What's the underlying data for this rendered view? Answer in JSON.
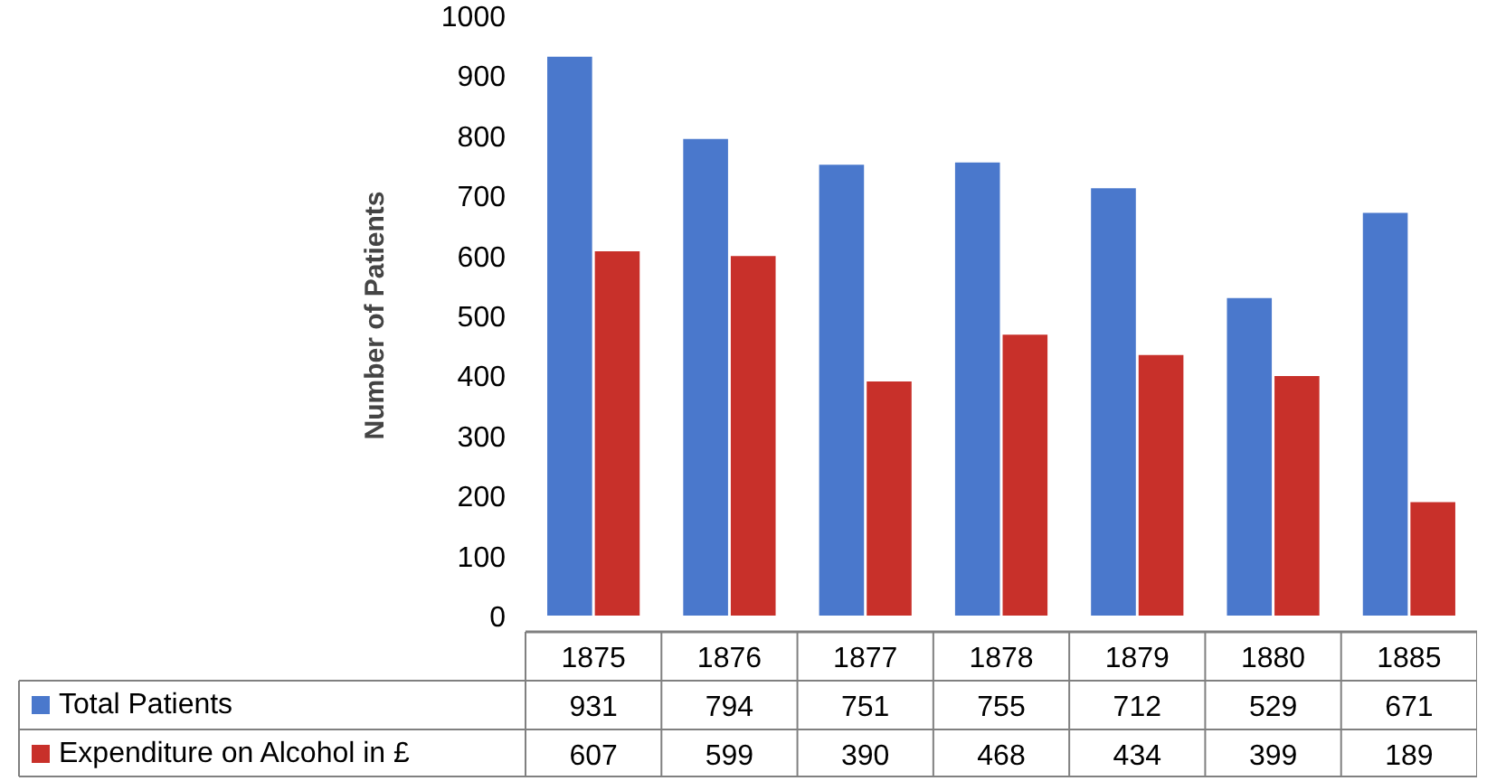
{
  "chart_data": {
    "type": "bar",
    "ylabel": "Number of Patients",
    "categories": [
      "1875",
      "1876",
      "1877",
      "1878",
      "1879",
      "1880",
      "1885"
    ],
    "series": [
      {
        "name": "Total Patients",
        "color": "#4a78cc",
        "values": [
          931,
          794,
          751,
          755,
          712,
          529,
          671
        ]
      },
      {
        "name": "Expenditure on Alcohol in £",
        "color": "#c8302a",
        "values": [
          607,
          599,
          390,
          468,
          434,
          399,
          189
        ]
      }
    ],
    "ylim": [
      0,
      1000
    ],
    "yticks": [
      0,
      100,
      200,
      300,
      400,
      500,
      600,
      700,
      800,
      900,
      1000
    ],
    "data_labels": true,
    "legend": "bottom",
    "grid": false
  }
}
